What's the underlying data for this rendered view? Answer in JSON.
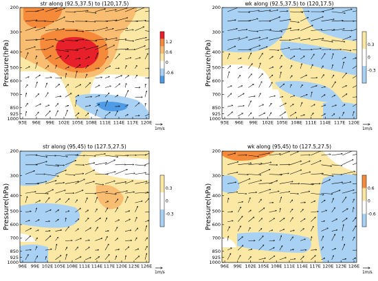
{
  "colors": {
    "red": "#e8202a",
    "orange": "#f58b3a",
    "lightorange": "#f9bd72",
    "yellow": "#fbe8a4",
    "white": "#ffffff",
    "lightblue": "#a9d1f3",
    "blue": "#4f9be6"
  },
  "chart_data": [
    {
      "type": "heatmap",
      "subtype": "vertical cross-section with wind vectors",
      "title": "str along (92.5,37.5) to (120,17.5)",
      "ylabel": "Pressure(hPa)",
      "y_ticks": [
        "200",
        "300",
        "400",
        "500",
        "600",
        "700",
        "850",
        "925",
        "1000"
      ],
      "x_ticks": [
        "93E",
        "96E",
        "99E",
        "102E",
        "105E",
        "108E",
        "111E",
        "114E",
        "117E",
        "120E"
      ],
      "colorbar_ticks": [
        "1.2",
        "0.6",
        "0",
        "-0.6"
      ],
      "colorbar_colors": [
        "red",
        "orange",
        "lightorange",
        "yellow",
        "white",
        "lightblue",
        "blue"
      ],
      "vector_unit": "1m/s",
      "wind_vectors": true
    },
    {
      "type": "heatmap",
      "subtype": "vertical cross-section with wind vectors",
      "title": "wk along (92.5,37.5) to (120,17.5)",
      "ylabel": "Pressure(hPa)",
      "y_ticks": [
        "200",
        "300",
        "400",
        "500",
        "600",
        "700",
        "850",
        "925",
        "1000"
      ],
      "x_ticks": [
        "93E",
        "96E",
        "99E",
        "102E",
        "105E",
        "108E",
        "111E",
        "114E",
        "117E",
        "120E"
      ],
      "colorbar_ticks": [
        "0.3",
        "0",
        "-0.3"
      ],
      "colorbar_colors": [
        "yellow",
        "white",
        "lightblue"
      ],
      "vector_unit": "1m/s",
      "wind_vectors": true
    },
    {
      "type": "heatmap",
      "subtype": "vertical cross-section with wind vectors",
      "title": "str along (95,45) to (127.5,27.5)",
      "ylabel": "Pressure(hPa)",
      "y_ticks": [
        "200",
        "300",
        "400",
        "500",
        "600",
        "700",
        "850",
        "925",
        "1000"
      ],
      "x_ticks": [
        "96E",
        "99E",
        "102E",
        "105E",
        "108E",
        "111E",
        "114E",
        "117E",
        "120E",
        "123E",
        "126E"
      ],
      "colorbar_ticks": [
        "0.3",
        "0",
        "-0.3"
      ],
      "colorbar_colors": [
        "yellow",
        "white",
        "lightblue"
      ],
      "vector_unit": "1m/s",
      "wind_vectors": true
    },
    {
      "type": "heatmap",
      "subtype": "vertical cross-section with wind vectors",
      "title": "wk along (95,45) to (127.5,27.5)",
      "ylabel": "Pressure(hPa)",
      "y_ticks": [
        "200",
        "300",
        "400",
        "500",
        "600",
        "700",
        "850",
        "925",
        "1000"
      ],
      "x_ticks": [
        "96E",
        "99E",
        "102E",
        "105E",
        "108E",
        "111E",
        "114E",
        "117E",
        "120E",
        "123E",
        "126E"
      ],
      "colorbar_ticks": [
        "0.6",
        "0",
        "-0.6"
      ],
      "colorbar_colors": [
        "orange",
        "yellow",
        "white",
        "lightblue"
      ],
      "vector_unit": "1m/s",
      "wind_vectors": true
    }
  ]
}
